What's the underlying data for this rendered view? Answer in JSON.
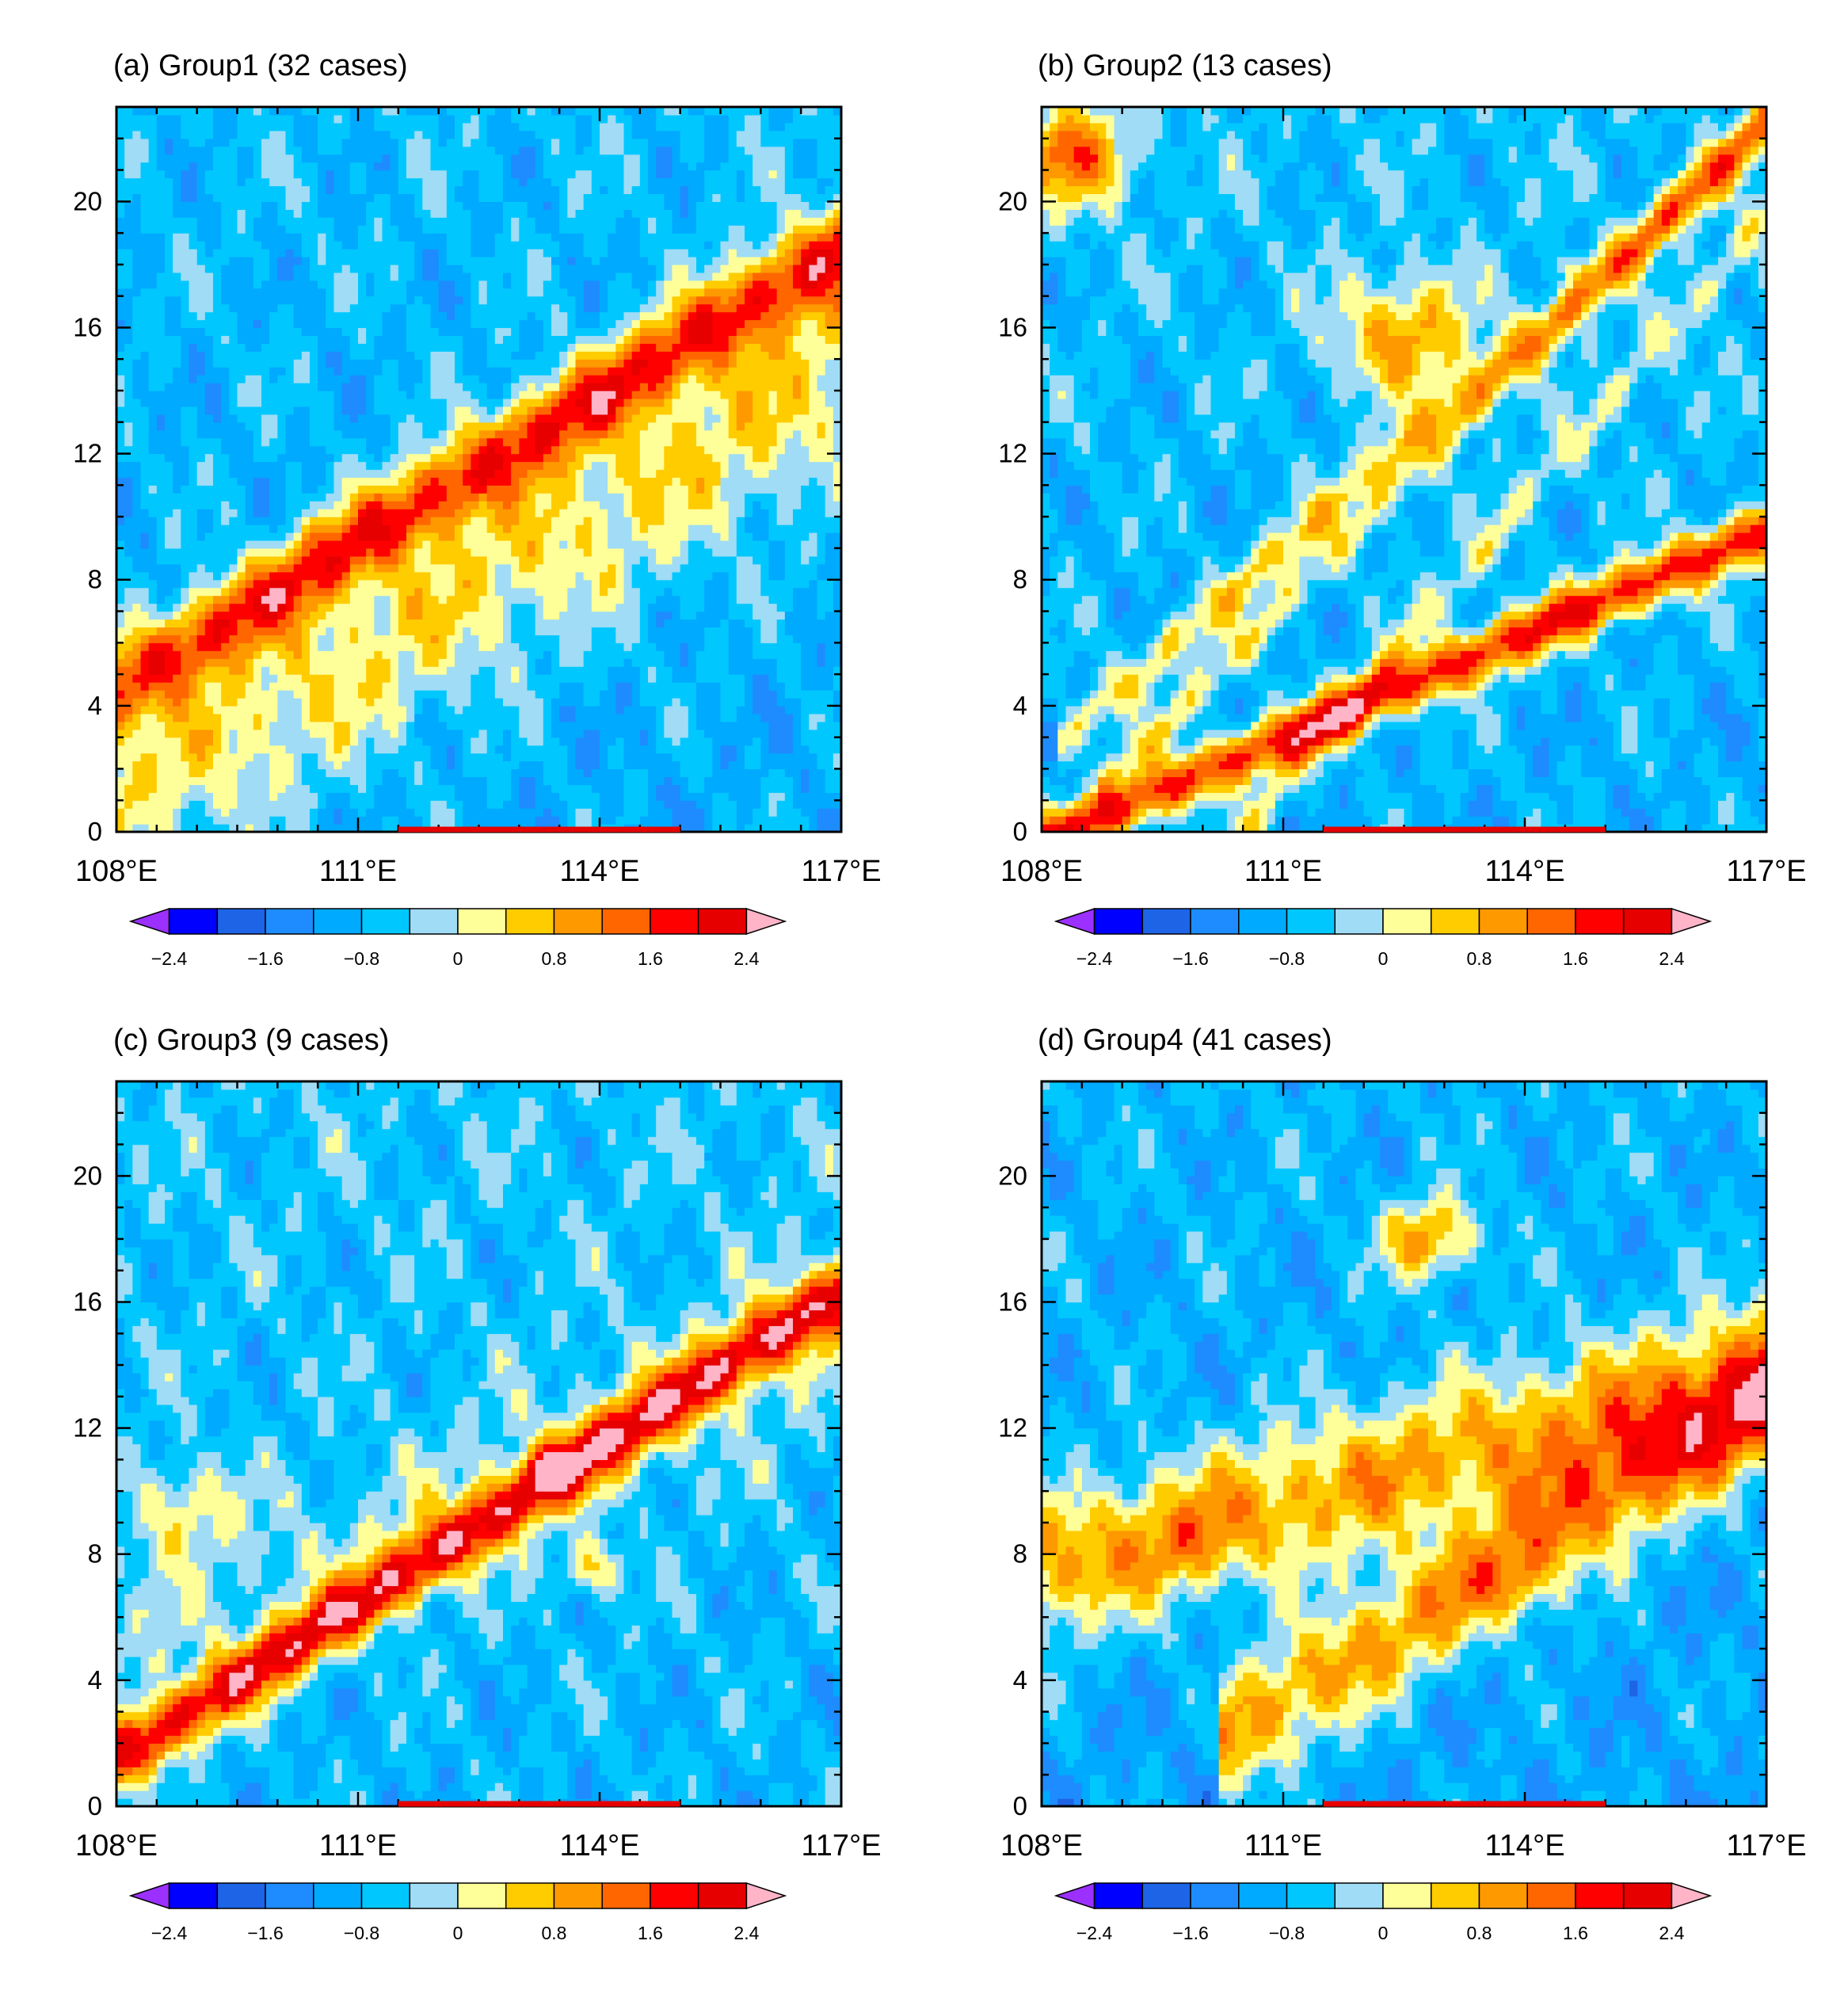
{
  "chart_data": [
    {
      "type": "heatmap",
      "title": "(a) Group1 (32 cases)",
      "x_ticks": [
        "108°E",
        "111°E",
        "114°E",
        "117°E"
      ],
      "x_tick_values": [
        108,
        111,
        114,
        117
      ],
      "y_ticks": [
        "0",
        "4",
        "8",
        "12",
        "16",
        "20"
      ],
      "y_tick_values": [
        0,
        4,
        8,
        12,
        16,
        20
      ],
      "xlim": [
        108,
        117
      ],
      "ylim": [
        0,
        23
      ],
      "bands": [
        {
          "x0": 108,
          "y0": 4.6,
          "slope": 1.55,
          "width": 1.4,
          "amp": 2.3
        },
        {
          "x0": 108,
          "y0": 1.0,
          "slope": 1.55,
          "width": 3.6,
          "amp": 1.2
        }
      ],
      "background": -0.9,
      "red_bar": [
        111.5,
        115.0
      ],
      "colorbar_ticks": [
        "−2.4",
        "−1.6",
        "−0.8",
        "0",
        "0.8",
        "1.6",
        "2.4"
      ]
    },
    {
      "type": "heatmap",
      "title": "(b) Group2 (13 cases)",
      "x_ticks": [
        "108°E",
        "111°E",
        "114°E",
        "117°E"
      ],
      "x_tick_values": [
        108,
        111,
        114,
        117
      ],
      "y_ticks": [
        "0",
        "4",
        "8",
        "12",
        "16",
        "20"
      ],
      "y_tick_values": [
        0,
        4,
        8,
        12,
        16,
        20
      ],
      "xlim": [
        108,
        117
      ],
      "ylim": [
        0,
        23
      ],
      "bands": [
        {
          "x0": 108.3,
          "y0": 0.0,
          "slope": 1.1,
          "width": 0.9,
          "amp": 2.6
        },
        {
          "x0": 108.5,
          "y0": 3.5,
          "slope": 2.2,
          "width": 0.9,
          "amp": 1.2
        },
        {
          "x0": 109.0,
          "y0": 2.0,
          "slope": 2.6,
          "width": 0.8,
          "amp": 1.0
        },
        {
          "x0": 110.5,
          "y0": 0.0,
          "slope": 3.0,
          "width": 0.9,
          "amp": 0.9
        }
      ],
      "blobs": [
        {
          "x": 108.4,
          "y": 21.5,
          "r": 1.6,
          "amp": 2.0
        },
        {
          "x": 112.5,
          "y": 15.8,
          "r": 1.9,
          "amp": 1.7
        },
        {
          "x": 114.6,
          "y": 18.0,
          "r": 0.4,
          "amp": 0.8
        }
      ],
      "background": -0.85,
      "red_bar": [
        111.5,
        115.0
      ],
      "colorbar_ticks": [
        "−2.4",
        "−1.6",
        "−0.8",
        "0",
        "0.8",
        "1.6",
        "2.4"
      ]
    },
    {
      "type": "heatmap",
      "title": "(c) Group3 (9 cases)",
      "x_ticks": [
        "108°E",
        "111°E",
        "114°E",
        "117°E"
      ],
      "x_tick_values": [
        108,
        111,
        114,
        117
      ],
      "y_ticks": [
        "0",
        "4",
        "8",
        "12",
        "16",
        "20"
      ],
      "y_tick_values": [
        0,
        4,
        8,
        12,
        16,
        20
      ],
      "xlim": [
        108,
        117
      ],
      "ylim": [
        0,
        23
      ],
      "bands": [
        {
          "x0": 108,
          "y0": 1.5,
          "slope": 1.65,
          "width": 1.1,
          "amp": 2.7
        },
        {
          "x0": 108,
          "y0": 4.5,
          "slope": 1.2,
          "width": 3.0,
          "amp": 0.5
        }
      ],
      "blobs": [
        {
          "x": 108.8,
          "y": 9.5,
          "r": 1.5,
          "amp": 1.1
        },
        {
          "x": 113.9,
          "y": 7.5,
          "r": 0.8,
          "amp": 1.3
        },
        {
          "x": 113.4,
          "y": 10.8,
          "r": 0.7,
          "amp": 0.9
        }
      ],
      "background": -0.8,
      "red_bar": [
        111.5,
        115.0
      ],
      "colorbar_ticks": [
        "−2.4",
        "−1.6",
        "−0.8",
        "0",
        "0.8",
        "1.6",
        "2.4"
      ]
    },
    {
      "type": "heatmap",
      "title": "(d) Group4 (41 cases)",
      "x_ticks": [
        "108°E",
        "111°E",
        "114°E",
        "117°E"
      ],
      "x_tick_values": [
        108,
        111,
        114,
        117
      ],
      "y_ticks": [
        "0",
        "4",
        "8",
        "12",
        "16",
        "20"
      ],
      "y_tick_values": [
        0,
        4,
        8,
        12,
        16,
        20
      ],
      "xlim": [
        108,
        117
      ],
      "ylim": [
        0,
        23
      ],
      "bands": [
        {
          "x0": 108,
          "y0": 7.5,
          "slope": 0.7,
          "width": 2.4,
          "amp": 1.8
        },
        {
          "x0": 110.5,
          "y0": 2.5,
          "slope": 1.6,
          "width": 2.0,
          "amp": 1.9
        }
      ],
      "blobs": [
        {
          "x": 112.8,
          "y": 18.0,
          "r": 1.3,
          "amp": 1.9
        },
        {
          "x": 109.8,
          "y": 8.2,
          "r": 1.0,
          "amp": 0.6
        },
        {
          "x": 114.0,
          "y": 7.0,
          "r": 1.1,
          "amp": 0.6
        }
      ],
      "background": -1.0,
      "red_bar": [
        111.5,
        115.0
      ],
      "colorbar_ticks": [
        "−2.4",
        "−1.6",
        "−0.8",
        "0",
        "0.8",
        "1.6",
        "2.4"
      ]
    }
  ],
  "colorbar": {
    "levels": [
      -2.4,
      -2.0,
      -1.6,
      -1.2,
      -0.8,
      -0.4,
      0,
      0.4,
      0.8,
      1.2,
      1.6,
      2.0,
      2.4
    ],
    "colors": [
      "#9b30ff",
      "#0000ff",
      "#1e64e6",
      "#1e8cff",
      "#00aaff",
      "#00c8ff",
      "#a0dcf5",
      "#ffff99",
      "#ffcc00",
      "#ff9900",
      "#ff6600",
      "#ff0000",
      "#e60000",
      "#ffb4c8"
    ]
  }
}
